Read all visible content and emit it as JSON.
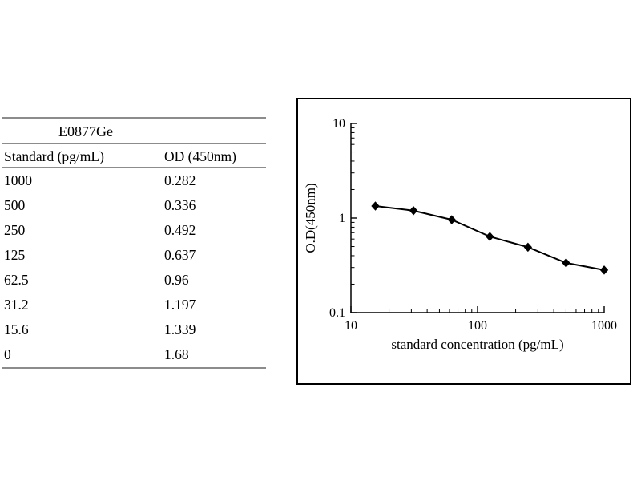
{
  "table": {
    "title": "E0877Ge",
    "col1_header": "Standard (pg/mL)",
    "col2_header": "OD (450nm)",
    "rows": [
      {
        "standard": "1000",
        "od": "0.282"
      },
      {
        "standard": "500",
        "od": "0.336"
      },
      {
        "standard": "250",
        "od": "0.492"
      },
      {
        "standard": "125",
        "od": "0.637"
      },
      {
        "standard": "62.5",
        "od": "0.96"
      },
      {
        "standard": "31.2",
        "od": "1.197"
      },
      {
        "standard": "15.6",
        "od": "1.339"
      },
      {
        "standard": "0",
        "od": "1.68"
      }
    ]
  },
  "chart_data": {
    "type": "line",
    "title": "",
    "x_scale": "log",
    "y_scale": "log",
    "x": [
      15.6,
      31.2,
      62.5,
      125,
      250,
      500,
      1000
    ],
    "y": [
      1.339,
      1.197,
      0.96,
      0.637,
      0.492,
      0.336,
      0.282
    ],
    "xlabel": "standard concentration (pg/mL)",
    "ylabel": "O.D(450nm)",
    "xlim": [
      10,
      1000
    ],
    "ylim": [
      0.1,
      10
    ],
    "x_ticks": [
      10,
      100,
      1000
    ],
    "y_ticks": [
      0.1,
      1,
      10
    ],
    "marker": "diamond",
    "line_color": "#000000",
    "grid": false,
    "legend": false
  }
}
